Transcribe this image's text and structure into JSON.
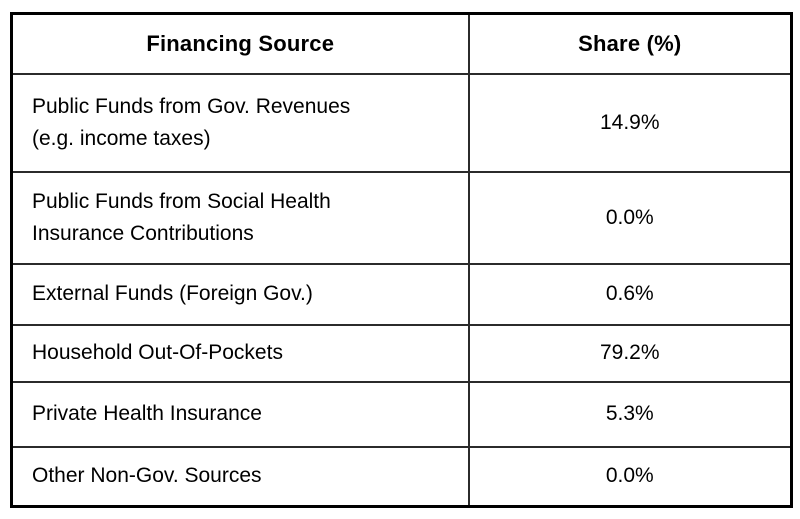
{
  "table": {
    "headers": {
      "source": "Financing Source",
      "share": "Share (%)"
    },
    "rows": [
      {
        "source": "Public Funds from Gov. Revenues\n(e.g. income taxes)",
        "share": "14.9%"
      },
      {
        "source": "Public Funds from Social Health\nInsurance Contributions",
        "share": "0.0%"
      },
      {
        "source": "External Funds (Foreign Gov.)",
        "share": "0.6%"
      },
      {
        "source": "Household Out-Of-Pockets",
        "share": "79.2%"
      },
      {
        "source": "Private Health Insurance",
        "share": "5.3%"
      },
      {
        "source": "Other Non-Gov. Sources",
        "share": "0.0%"
      }
    ]
  },
  "colors": {
    "outer_border": "#000000",
    "inner_border": "#2b2b2b",
    "text": "#000000",
    "background": "#ffffff"
  },
  "chart_data": {
    "type": "table",
    "title": "",
    "columns": [
      "Financing Source",
      "Share (%)"
    ],
    "rows": [
      [
        "Public Funds from Gov. Revenues (e.g. income taxes)",
        14.9
      ],
      [
        "Public Funds from Social Health Insurance Contributions",
        0.0
      ],
      [
        "External Funds (Foreign Gov.)",
        0.6
      ],
      [
        "Household Out-Of-Pockets",
        79.2
      ],
      [
        "Private Health Insurance",
        5.3
      ],
      [
        "Other Non-Gov. Sources",
        0.0
      ]
    ],
    "value_unit": "%"
  }
}
